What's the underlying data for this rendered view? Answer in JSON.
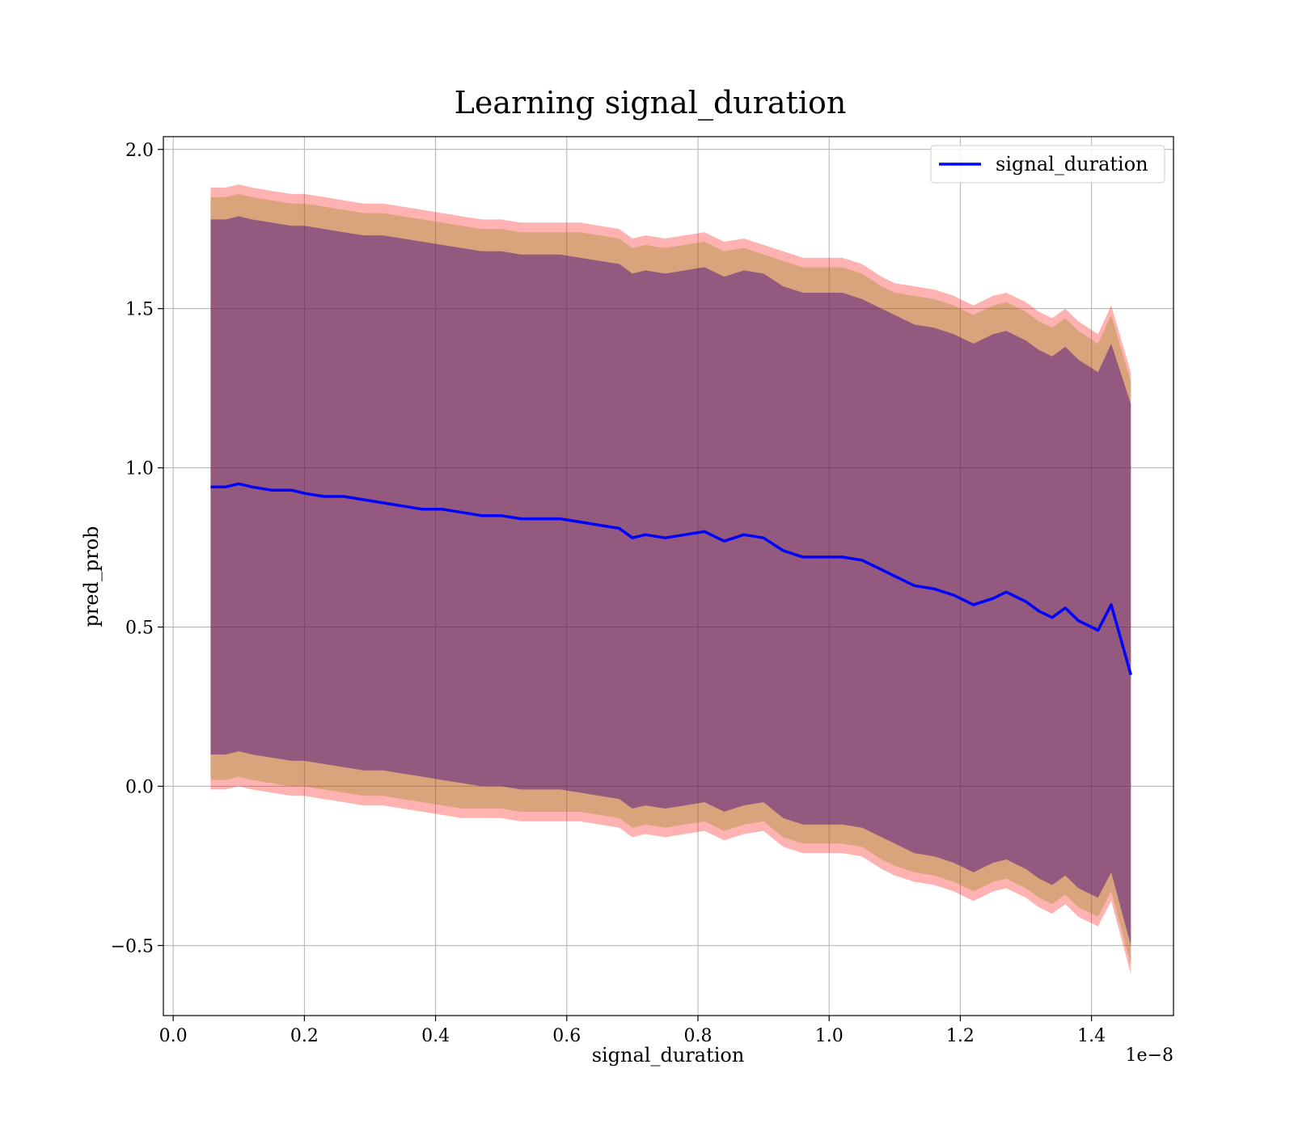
{
  "chart_data": {
    "type": "line",
    "title": "Learning signal_duration",
    "xlabel": "signal_duration",
    "ylabel": "pred_prob",
    "x_offset_label": "1e−8",
    "xlim": [
      -0.015,
      1.525
    ],
    "ylim": [
      -0.72,
      2.04
    ],
    "x_ticks": [
      0.0,
      0.2,
      0.4,
      0.6,
      0.8,
      1.0,
      1.2,
      1.4
    ],
    "x_tick_labels": [
      "0.0",
      "0.2",
      "0.4",
      "0.6",
      "0.8",
      "1.0",
      "1.2",
      "1.4"
    ],
    "y_ticks": [
      -0.5,
      0.0,
      0.5,
      1.0,
      1.5,
      2.0
    ],
    "y_tick_labels": [
      "−0.5",
      "0.0",
      "0.5",
      "1.0",
      "1.5",
      "2.0"
    ],
    "grid": true,
    "legend_position": "top-right",
    "x_unit_note": "x values shown as tick units; axis multiplier 1e−8",
    "series": [
      {
        "name": "signal_duration",
        "color": "#0000ff",
        "x": [
          0.057,
          0.08,
          0.1,
          0.12,
          0.15,
          0.18,
          0.2,
          0.23,
          0.26,
          0.29,
          0.32,
          0.35,
          0.38,
          0.41,
          0.44,
          0.47,
          0.5,
          0.53,
          0.56,
          0.59,
          0.62,
          0.65,
          0.68,
          0.7,
          0.72,
          0.75,
          0.78,
          0.81,
          0.84,
          0.87,
          0.9,
          0.93,
          0.96,
          0.99,
          1.02,
          1.05,
          1.08,
          1.1,
          1.13,
          1.16,
          1.19,
          1.22,
          1.25,
          1.27,
          1.3,
          1.32,
          1.34,
          1.36,
          1.38,
          1.41,
          1.43,
          1.46
        ],
        "y": [
          0.94,
          0.94,
          0.95,
          0.94,
          0.93,
          0.93,
          0.92,
          0.91,
          0.91,
          0.9,
          0.89,
          0.88,
          0.87,
          0.87,
          0.86,
          0.85,
          0.85,
          0.84,
          0.84,
          0.84,
          0.83,
          0.82,
          0.81,
          0.78,
          0.79,
          0.78,
          0.79,
          0.8,
          0.77,
          0.79,
          0.78,
          0.74,
          0.72,
          0.72,
          0.72,
          0.71,
          0.68,
          0.66,
          0.63,
          0.62,
          0.6,
          0.57,
          0.59,
          0.61,
          0.58,
          0.55,
          0.53,
          0.56,
          0.52,
          0.49,
          0.57,
          0.35
        ]
      }
    ],
    "bands": [
      {
        "color": "#ff0000",
        "opacity": 0.3,
        "upper": [
          1.88,
          1.88,
          1.89,
          1.88,
          1.87,
          1.86,
          1.86,
          1.85,
          1.84,
          1.83,
          1.83,
          1.82,
          1.81,
          1.8,
          1.79,
          1.78,
          1.78,
          1.77,
          1.77,
          1.77,
          1.77,
          1.76,
          1.75,
          1.72,
          1.73,
          1.72,
          1.73,
          1.74,
          1.71,
          1.72,
          1.7,
          1.68,
          1.66,
          1.66,
          1.66,
          1.64,
          1.6,
          1.58,
          1.57,
          1.56,
          1.54,
          1.51,
          1.54,
          1.55,
          1.52,
          1.49,
          1.47,
          1.5,
          1.46,
          1.42,
          1.51,
          1.3
        ],
        "lower": [
          -0.01,
          -0.01,
          0.0,
          -0.01,
          -0.02,
          -0.03,
          -0.03,
          -0.04,
          -0.05,
          -0.06,
          -0.06,
          -0.07,
          -0.08,
          -0.09,
          -0.1,
          -0.1,
          -0.1,
          -0.11,
          -0.11,
          -0.11,
          -0.11,
          -0.12,
          -0.13,
          -0.16,
          -0.15,
          -0.16,
          -0.15,
          -0.14,
          -0.17,
          -0.15,
          -0.14,
          -0.19,
          -0.21,
          -0.21,
          -0.21,
          -0.22,
          -0.26,
          -0.28,
          -0.3,
          -0.31,
          -0.33,
          -0.36,
          -0.33,
          -0.32,
          -0.35,
          -0.38,
          -0.4,
          -0.37,
          -0.41,
          -0.44,
          -0.36,
          -0.59
        ]
      },
      {
        "color": "#808000",
        "opacity": 0.3,
        "upper": [
          1.85,
          1.85,
          1.86,
          1.85,
          1.84,
          1.83,
          1.83,
          1.82,
          1.81,
          1.8,
          1.8,
          1.79,
          1.78,
          1.77,
          1.76,
          1.75,
          1.75,
          1.74,
          1.74,
          1.74,
          1.74,
          1.73,
          1.72,
          1.69,
          1.7,
          1.69,
          1.7,
          1.71,
          1.68,
          1.69,
          1.67,
          1.65,
          1.63,
          1.63,
          1.63,
          1.61,
          1.57,
          1.55,
          1.54,
          1.53,
          1.51,
          1.48,
          1.51,
          1.52,
          1.49,
          1.46,
          1.44,
          1.47,
          1.43,
          1.39,
          1.48,
          1.27
        ],
        "lower": [
          0.02,
          0.02,
          0.03,
          0.02,
          0.01,
          0.0,
          0.0,
          -0.01,
          -0.02,
          -0.03,
          -0.03,
          -0.04,
          -0.05,
          -0.06,
          -0.07,
          -0.07,
          -0.07,
          -0.08,
          -0.08,
          -0.08,
          -0.08,
          -0.09,
          -0.1,
          -0.13,
          -0.12,
          -0.13,
          -0.12,
          -0.11,
          -0.14,
          -0.12,
          -0.11,
          -0.16,
          -0.18,
          -0.18,
          -0.18,
          -0.19,
          -0.23,
          -0.25,
          -0.27,
          -0.28,
          -0.3,
          -0.33,
          -0.3,
          -0.29,
          -0.32,
          -0.35,
          -0.37,
          -0.34,
          -0.38,
          -0.41,
          -0.33,
          -0.56
        ]
      },
      {
        "color": "#400080",
        "opacity": 0.45,
        "upper": [
          1.78,
          1.78,
          1.79,
          1.78,
          1.77,
          1.76,
          1.76,
          1.75,
          1.74,
          1.73,
          1.73,
          1.72,
          1.71,
          1.7,
          1.69,
          1.68,
          1.68,
          1.67,
          1.67,
          1.67,
          1.66,
          1.65,
          1.64,
          1.61,
          1.62,
          1.61,
          1.62,
          1.63,
          1.6,
          1.62,
          1.61,
          1.57,
          1.55,
          1.55,
          1.55,
          1.53,
          1.5,
          1.48,
          1.45,
          1.44,
          1.42,
          1.39,
          1.42,
          1.43,
          1.4,
          1.37,
          1.35,
          1.38,
          1.34,
          1.3,
          1.39,
          1.2
        ],
        "lower": [
          0.1,
          0.1,
          0.11,
          0.1,
          0.09,
          0.08,
          0.08,
          0.07,
          0.06,
          0.05,
          0.05,
          0.04,
          0.03,
          0.02,
          0.01,
          0.0,
          0.0,
          -0.01,
          -0.01,
          -0.01,
          -0.02,
          -0.03,
          -0.04,
          -0.07,
          -0.06,
          -0.07,
          -0.06,
          -0.05,
          -0.08,
          -0.06,
          -0.05,
          -0.1,
          -0.12,
          -0.12,
          -0.12,
          -0.13,
          -0.16,
          -0.18,
          -0.21,
          -0.22,
          -0.24,
          -0.27,
          -0.24,
          -0.23,
          -0.26,
          -0.29,
          -0.31,
          -0.28,
          -0.32,
          -0.35,
          -0.27,
          -0.5
        ]
      }
    ]
  }
}
